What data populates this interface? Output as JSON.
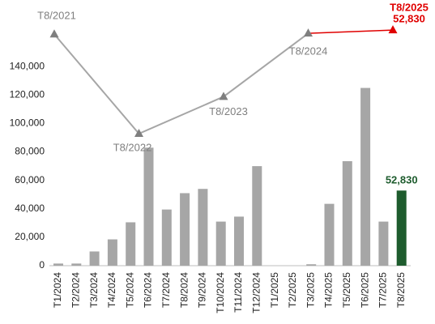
{
  "chart_data": {
    "type": "bar",
    "categories": [
      "T1/2024",
      "T2/2024",
      "T3/2024",
      "T4/2024",
      "T5/2024",
      "T6/2024",
      "T7/2024",
      "T8/2024",
      "T9/2024",
      "T10/2024",
      "T11/2024",
      "T12/2024",
      "T1/2025",
      "T2/2025",
      "T3/2025",
      "T4/2025",
      "T5/2025",
      "T6/2025",
      "T7/2025",
      "T8/2025"
    ],
    "values": [
      1500,
      1500,
      10000,
      18500,
      30500,
      83000,
      39500,
      51000,
      54000,
      31000,
      34500,
      70000,
      0,
      0,
      1000,
      43500,
      73500,
      125000,
      31000,
      52830
    ],
    "value_labels": [
      null,
      null,
      null,
      null,
      null,
      null,
      null,
      null,
      null,
      null,
      null,
      null,
      null,
      null,
      null,
      null,
      null,
      null,
      null,
      "52,830"
    ],
    "colors": [
      "#a6a6a6",
      "#a6a6a6",
      "#a6a6a6",
      "#a6a6a6",
      "#a6a6a6",
      "#a6a6a6",
      "#a6a6a6",
      "#a6a6a6",
      "#a6a6a6",
      "#a6a6a6",
      "#a6a6a6",
      "#a6a6a6",
      "#a6a6a6",
      "#a6a6a6",
      "#a6a6a6",
      "#a6a6a6",
      "#a6a6a6",
      "#a6a6a6",
      "#a6a6a6",
      "#1e5c2e"
    ],
    "ylim": [
      0,
      180000
    ],
    "yticks": [
      {
        "value": 0,
        "label": "0"
      },
      {
        "value": 20000,
        "label": "20,000"
      },
      {
        "value": 40000,
        "label": "40,000"
      },
      {
        "value": 60000,
        "label": "60,000"
      },
      {
        "value": 80000,
        "label": "80,000"
      },
      {
        "value": 100000,
        "label": "100,000"
      },
      {
        "value": 120000,
        "label": "120,000"
      },
      {
        "value": 140000,
        "label": "140,000"
      }
    ],
    "line": {
      "type": "line",
      "axis": "y2",
      "categories": [
        "T8/2021",
        "T8/2022",
        "T8/2023",
        "T8/2024",
        "T8/2025"
      ],
      "values": [
        51900,
        29600,
        37900,
        52100,
        52830
      ],
      "value_labels": [
        null,
        null,
        null,
        null,
        "52,830"
      ],
      "color": "#a6a6a6",
      "highlight_color": "#e00000"
    },
    "y2lim": [
      0,
      57400
    ]
  }
}
